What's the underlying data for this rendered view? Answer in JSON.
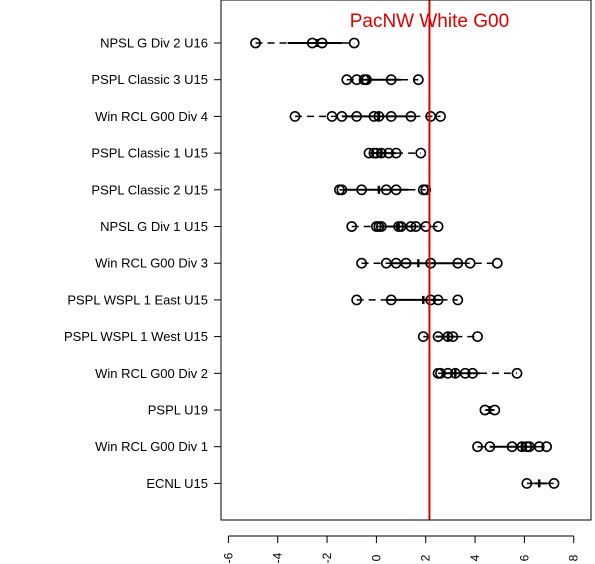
{
  "chart_data": {
    "type": "boxplot",
    "title": "",
    "xlabel": "",
    "ylabel": "",
    "xlim": [
      -6.3,
      8.7
    ],
    "x_ticks": [
      -6,
      -4,
      -2,
      0,
      2,
      4,
      6,
      8
    ],
    "x_tick_labels": [
      "-6",
      "-4",
      "-2",
      "0",
      "2",
      "4",
      "6",
      "8"
    ],
    "grid": false,
    "reference_line": {
      "label": "PacNW White G00",
      "value": 2.15,
      "color": "#dd0000"
    },
    "categories": [
      "NPSL G Div 2 U16",
      "PSPL Classic 3 U15",
      "Win RCL G00 Div 4",
      "PSPL Classic 1 U15",
      "PSPL Classic 2 U15",
      "NPSL G Div 1 U15",
      "Win RCL G00 Div 3",
      "PSPL WSPL 1 East U15",
      "PSPL WSPL 1 West U15",
      "Win RCL G00 Div 2",
      "PSPL U19",
      "Win RCL G00 Div 1",
      "ECNL U15"
    ],
    "groups": [
      {
        "name": "NPSL G Div 2 U16",
        "whisker_low": -4.9,
        "q1": -3.6,
        "median": -2.4,
        "q3": -1.4,
        "whisker_high": -0.9,
        "points": [
          -4.9,
          -2.6,
          -2.2,
          -0.9
        ]
      },
      {
        "name": "PSPL Classic 3 U15",
        "whisker_low": -1.2,
        "q1": -0.7,
        "median": -0.3,
        "q3": 1.0,
        "whisker_high": 1.7,
        "points": [
          -1.2,
          -0.8,
          -0.5,
          -0.4,
          0.6,
          1.7
        ]
      },
      {
        "name": "Win RCL G00 Div 4",
        "whisker_low": -3.3,
        "q1": -1.4,
        "median": 0.1,
        "q3": 1.5,
        "whisker_high": 2.6,
        "points": [
          -3.3,
          -1.8,
          -1.4,
          -0.8,
          -0.1,
          0.1,
          0.6,
          1.4,
          2.2,
          2.6
        ]
      },
      {
        "name": "PSPL Classic 1 U15",
        "whisker_low": -0.3,
        "q1": -0.1,
        "median": 0.2,
        "q3": 0.8,
        "whisker_high": 1.8,
        "points": [
          -0.3,
          -0.1,
          0.0,
          0.2,
          0.5,
          0.8,
          1.8
        ]
      },
      {
        "name": "PSPL Classic 2 U15",
        "whisker_low": -1.5,
        "q1": -1.3,
        "median": 0.1,
        "q3": 1.3,
        "whisker_high": 2.0,
        "points": [
          -1.5,
          -1.4,
          -0.6,
          0.4,
          0.8,
          1.9,
          2.0
        ]
      },
      {
        "name": "NPSL G Div 1 U15",
        "whisker_low": -1.0,
        "q1": 0.1,
        "median": 0.9,
        "q3": 1.7,
        "whisker_high": 2.5,
        "points": [
          -1.0,
          0.0,
          0.1,
          0.2,
          0.9,
          1.0,
          1.4,
          1.6,
          2.0,
          2.5
        ]
      },
      {
        "name": "Win RCL G00 Div 3",
        "whisker_low": -0.6,
        "q1": 0.6,
        "median": 1.7,
        "q3": 3.5,
        "whisker_high": 4.9,
        "points": [
          -0.6,
          0.4,
          0.8,
          1.2,
          2.2,
          3.3,
          3.8,
          4.9
        ]
      },
      {
        "name": "PSPL WSPL 1 East U15",
        "whisker_low": -0.8,
        "q1": 0.4,
        "median": 1.9,
        "q3": 2.6,
        "whisker_high": 3.3,
        "points": [
          -0.8,
          0.6,
          2.2,
          2.5,
          3.3
        ]
      },
      {
        "name": "PSPL WSPL 1 West U15",
        "whisker_low": 1.9,
        "q1": 2.4,
        "median": 2.9,
        "q3": 3.2,
        "whisker_high": 4.1,
        "points": [
          1.9,
          2.5,
          2.9,
          3.1,
          4.1
        ]
      },
      {
        "name": "Win RCL G00 Div 2",
        "whisker_low": 2.5,
        "q1": 2.8,
        "median": 3.2,
        "q3": 4.2,
        "whisker_high": 5.7,
        "points": [
          2.5,
          2.6,
          2.9,
          3.2,
          3.6,
          3.9,
          5.7
        ]
      },
      {
        "name": "PSPL U19",
        "whisker_low": 4.4,
        "q1": 4.45,
        "median": 4.6,
        "q3": 4.75,
        "whisker_high": 4.8,
        "points": [
          4.4,
          4.8
        ]
      },
      {
        "name": "Win RCL G00 Div 1",
        "whisker_low": 4.1,
        "q1": 4.6,
        "median": 5.9,
        "q3": 6.5,
        "whisker_high": 6.9,
        "points": [
          4.1,
          4.6,
          5.5,
          5.9,
          6.1,
          6.2,
          6.6,
          6.9
        ]
      },
      {
        "name": "ECNL U15",
        "whisker_low": 6.1,
        "q1": 6.4,
        "median": 6.6,
        "q3": 6.9,
        "whisker_high": 7.2,
        "points": [
          6.1,
          7.2
        ]
      }
    ]
  },
  "colors": {
    "points": "#000000",
    "reference_line": "#dd0000"
  }
}
